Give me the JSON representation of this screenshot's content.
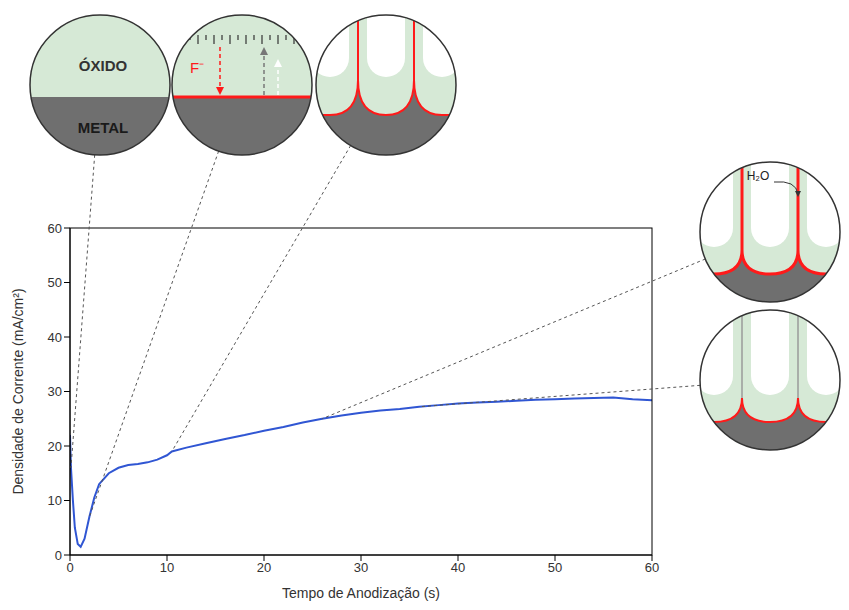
{
  "chart_data": {
    "type": "line",
    "x_label": "Tempo de Anodização (s)",
    "y_label": "Densidade de Corrente (mA/cm²)",
    "x": [
      0,
      0.1,
      0.3,
      0.5,
      0.8,
      1.1,
      1.5,
      2,
      2.5,
      3,
      4,
      5,
      6,
      7,
      8,
      9,
      10,
      10.5,
      12,
      14,
      16,
      18,
      20,
      22,
      24,
      26,
      28,
      30,
      32,
      34,
      36,
      38,
      40,
      42,
      44,
      46,
      48,
      50,
      52,
      54,
      56,
      58,
      60
    ],
    "values": [
      22,
      16,
      10,
      5,
      2,
      1.5,
      3,
      7,
      10.5,
      13,
      15,
      16,
      16.5,
      16.7,
      17,
      17.5,
      18.3,
      19,
      19.7,
      20.5,
      21.3,
      22,
      22.8,
      23.5,
      24.3,
      25,
      25.6,
      26.1,
      26.5,
      26.8,
      27.2,
      27.5,
      27.8,
      28,
      28.1,
      28.3,
      28.5,
      28.6,
      28.7,
      28.8,
      28.9,
      28.6,
      28.4
    ],
    "color": "#3056d3",
    "xlim": [
      0,
      60
    ],
    "ylim": [
      0,
      60
    ],
    "xticks": [
      0,
      10,
      20,
      30,
      40,
      50,
      60
    ],
    "yticks": [
      0,
      10,
      20,
      30,
      40,
      50,
      60
    ],
    "grid": false,
    "annotations": {
      "oxide": "ÓXIDO",
      "metal": "METAL",
      "ion": "F⁻",
      "water": "H₂O"
    }
  }
}
